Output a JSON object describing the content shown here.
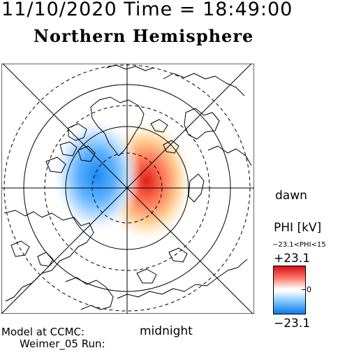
{
  "header": {
    "datetime": "11/10/2020 Time = 18:49:00"
  },
  "hemisphere": {
    "title": "Northern Hemisphere"
  },
  "orientation": {
    "right": "dawn",
    "bottom": "midnight"
  },
  "legend": {
    "title": "PHI [kV]",
    "range_text": "−23.1<PHI<15",
    "max": "+23.1",
    "zero": "0",
    "min": "−23.1",
    "colors": {
      "max": "#d40e18",
      "mid": "#ffffff",
      "min": "#0a7ae8"
    }
  },
  "model": {
    "line1": "Model at CCMC:",
    "line2": "Weimer_05 Run:"
  }
}
